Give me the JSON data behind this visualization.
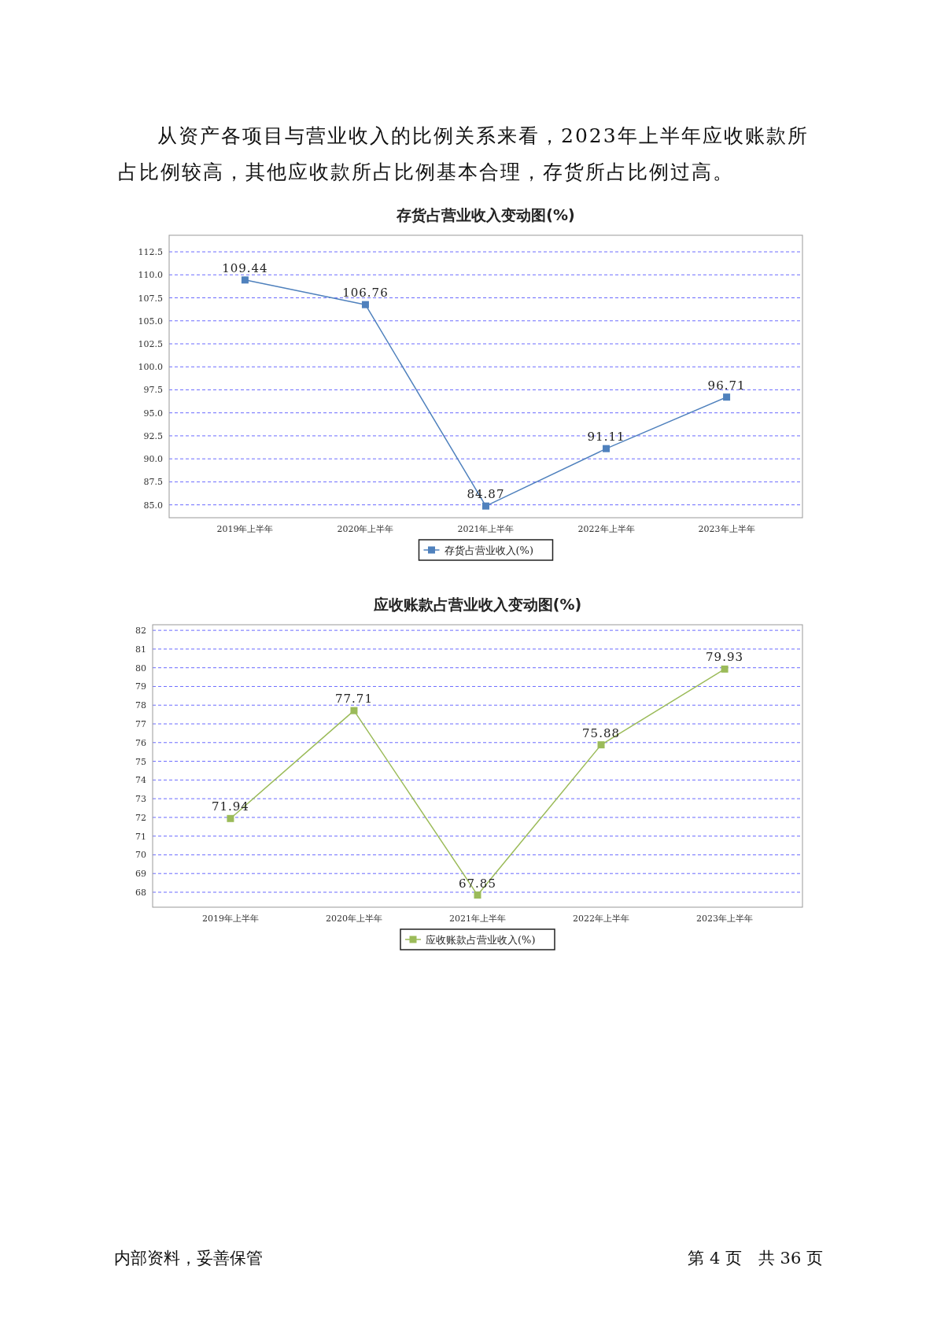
{
  "chart_data": [
    {
      "type": "line",
      "title": "存货占营业收入变动图(%)",
      "annotations": [
        "从资产各项目与营业收入的比例关系来看，2023年上半年应收账款所占比例较高，其他应收款所占比例基本合理，存货所占比例过高。"
      ],
      "categories": [
        "2019年上半年",
        "2020年上半年",
        "2021年上半年",
        "2022年上半年",
        "2023年上半年"
      ],
      "series": [
        {
          "name": "存货占营业收入(%)",
          "color": "#4f81bd",
          "values": [
            109.44,
            106.76,
            84.87,
            91.11,
            96.71
          ]
        }
      ],
      "ylim": [
        83.6,
        114.3
      ],
      "yticks": [
        {
          "value": 85,
          "label": "85.0"
        },
        {
          "value": 87.5,
          "label": "87.5"
        },
        {
          "value": 90,
          "label": "90.0"
        },
        {
          "value": 92.5,
          "label": "92.5"
        },
        {
          "value": 95,
          "label": "95.0"
        },
        {
          "value": 97.5,
          "label": "97.5"
        },
        {
          "value": 100,
          "label": "100.0"
        },
        {
          "value": 102.5,
          "label": "102.5"
        },
        {
          "value": 105,
          "label": "105.0"
        },
        {
          "value": 107.5,
          "label": "107.5"
        },
        {
          "value": 110,
          "label": "110.0"
        },
        {
          "value": 112.5,
          "label": "112.5"
        }
      ],
      "grid": "y",
      "legend": "bottom",
      "marker": "square",
      "line_style": "solid",
      "data_labels": true
    },
    {
      "type": "line",
      "title": "应收账款占营业收入变动图(%)",
      "annotations": [
        "内部资料，妥善保管",
        "第 4 页　共 36 页"
      ],
      "categories": [
        "2019年上半年",
        "2020年上半年",
        "2021年上半年",
        "2022年上半年",
        "2023年上半年"
      ],
      "series": [
        {
          "name": "应收账款占营业收入(%)",
          "color": "#9bbb59",
          "values": [
            71.94,
            77.71,
            67.85,
            75.88,
            79.93
          ]
        }
      ],
      "ylim": [
        67.2,
        82.3
      ],
      "yticks": [
        68,
        69,
        70,
        71,
        72,
        73,
        74,
        75,
        76,
        77,
        78,
        79,
        80,
        81,
        82
      ],
      "grid": "y",
      "legend": "bottom",
      "marker": "square",
      "line_style": "solid",
      "data_labels": true
    }
  ]
}
